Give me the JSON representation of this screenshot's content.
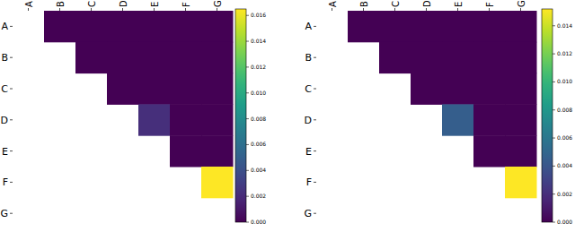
{
  "chart_data": [
    {
      "type": "heatmap",
      "x": [
        "A",
        "B",
        "C",
        "D",
        "E",
        "F",
        "G"
      ],
      "y": [
        "A",
        "B",
        "C",
        "D",
        "E",
        "F",
        "G"
      ],
      "cells": [
        [
          null,
          0,
          0,
          0,
          0,
          0,
          0
        ],
        [
          null,
          null,
          0,
          0,
          0,
          0,
          0
        ],
        [
          null,
          null,
          null,
          0,
          0,
          0,
          0
        ],
        [
          null,
          null,
          null,
          null,
          0.0022,
          0,
          0
        ],
        [
          null,
          null,
          null,
          null,
          null,
          0,
          0
        ],
        [
          null,
          null,
          null,
          null,
          null,
          null,
          0.0165
        ],
        [
          null,
          null,
          null,
          null,
          null,
          null,
          null
        ]
      ],
      "colorbar_range": [
        0,
        0.0165
      ],
      "colorbar_ticks": [
        {
          "value": 0,
          "label": "0.000"
        },
        {
          "value": 0.002,
          "label": "0.002"
        },
        {
          "value": 0.004,
          "label": "0.004"
        },
        {
          "value": 0.006,
          "label": "0.006"
        },
        {
          "value": 0.008,
          "label": "0.008"
        },
        {
          "value": 0.01,
          "label": "0.010"
        },
        {
          "value": 0.012,
          "label": "0.012"
        },
        {
          "value": 0.014,
          "label": "0.014"
        },
        {
          "value": 0.016,
          "label": "0.016"
        }
      ]
    },
    {
      "type": "heatmap",
      "x": [
        "A",
        "B",
        "C",
        "D",
        "E",
        "F",
        "G"
      ],
      "y": [
        "A",
        "B",
        "C",
        "D",
        "E",
        "F",
        "G"
      ],
      "cells": [
        [
          null,
          0,
          0,
          0,
          0,
          0,
          0
        ],
        [
          null,
          null,
          0,
          0,
          0,
          0,
          0
        ],
        [
          null,
          null,
          null,
          0,
          0,
          0,
          0
        ],
        [
          null,
          null,
          null,
          null,
          0.0045,
          0,
          0
        ],
        [
          null,
          null,
          null,
          null,
          null,
          0,
          0
        ],
        [
          null,
          null,
          null,
          null,
          null,
          null,
          0.0152
        ],
        [
          null,
          null,
          null,
          null,
          null,
          null,
          null
        ]
      ],
      "colorbar_range": [
        0,
        0.0152
      ],
      "colorbar_ticks": [
        {
          "value": 0,
          "label": "0.000"
        },
        {
          "value": 0.002,
          "label": "0.002"
        },
        {
          "value": 0.004,
          "label": "0.004"
        },
        {
          "value": 0.006,
          "label": "0.006"
        },
        {
          "value": 0.008,
          "label": "0.008"
        },
        {
          "value": 0.01,
          "label": "0.010"
        },
        {
          "value": 0.012,
          "label": "0.012"
        },
        {
          "value": 0.014,
          "label": "0.014"
        }
      ]
    }
  ]
}
